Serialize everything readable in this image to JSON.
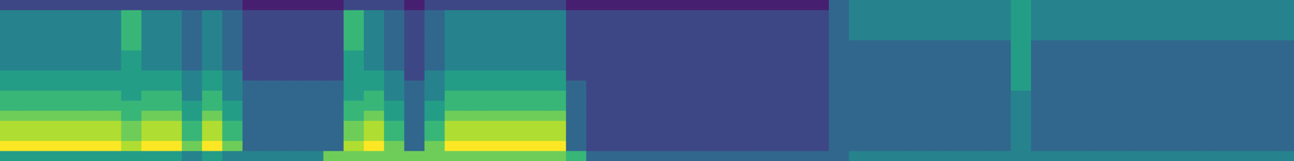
{
  "chart_data": {
    "type": "heatmap",
    "grid": false,
    "tick_labels": false,
    "color_range": [
      0,
      9
    ],
    "cells": [
      [
        2,
        2,
        2,
        2,
        2,
        2,
        2,
        2,
        2,
        2,
        2,
        2,
        1,
        1,
        1,
        1,
        1,
        2,
        2,
        2,
        1,
        2,
        2,
        2,
        2,
        2,
        2,
        2,
        1,
        1,
        1,
        1,
        1,
        1,
        1,
        1,
        1,
        1,
        1,
        1,
        1,
        3,
        4,
        4,
        4,
        4,
        4,
        4,
        4,
        4,
        5,
        4,
        4,
        4,
        4,
        4,
        4,
        4,
        4,
        4,
        4,
        4,
        4,
        4
      ],
      [
        4,
        4,
        4,
        4,
        4,
        4,
        6,
        4,
        4,
        3,
        4,
        3,
        2,
        2,
        2,
        2,
        2,
        6,
        4,
        3,
        2,
        3,
        4,
        4,
        4,
        4,
        4,
        4,
        2,
        2,
        2,
        2,
        2,
        2,
        2,
        2,
        2,
        2,
        2,
        2,
        2,
        3,
        4,
        4,
        4,
        4,
        4,
        4,
        4,
        4,
        5,
        4,
        4,
        4,
        4,
        4,
        4,
        4,
        4,
        4,
        4,
        4,
        4,
        4
      ],
      [
        4,
        4,
        4,
        4,
        4,
        4,
        6,
        4,
        4,
        3,
        4,
        3,
        2,
        2,
        2,
        2,
        2,
        6,
        4,
        3,
        2,
        3,
        4,
        4,
        4,
        4,
        4,
        4,
        2,
        2,
        2,
        2,
        2,
        2,
        2,
        2,
        2,
        2,
        2,
        2,
        2,
        3,
        4,
        4,
        4,
        4,
        4,
        4,
        4,
        4,
        5,
        4,
        4,
        4,
        4,
        4,
        4,
        4,
        4,
        4,
        4,
        4,
        4,
        4
      ],
      [
        4,
        4,
        4,
        4,
        4,
        4,
        6,
        4,
        4,
        3,
        4,
        3,
        2,
        2,
        2,
        2,
        2,
        6,
        4,
        3,
        2,
        3,
        4,
        4,
        4,
        4,
        4,
        4,
        2,
        2,
        2,
        2,
        2,
        2,
        2,
        2,
        2,
        2,
        2,
        2,
        2,
        3,
        4,
        4,
        4,
        4,
        4,
        4,
        4,
        4,
        5,
        4,
        4,
        4,
        4,
        4,
        4,
        4,
        4,
        4,
        4,
        4,
        4,
        4
      ],
      [
        4,
        4,
        4,
        4,
        4,
        4,
        6,
        4,
        4,
        3,
        4,
        3,
        2,
        2,
        2,
        2,
        2,
        6,
        4,
        3,
        2,
        3,
        4,
        4,
        4,
        4,
        4,
        4,
        2,
        2,
        2,
        2,
        2,
        2,
        2,
        2,
        2,
        2,
        2,
        2,
        2,
        3,
        3,
        3,
        3,
        3,
        3,
        3,
        3,
        3,
        5,
        3,
        3,
        3,
        3,
        3,
        3,
        3,
        3,
        3,
        3,
        3,
        3,
        3
      ],
      [
        4,
        4,
        4,
        4,
        4,
        4,
        5,
        4,
        4,
        3,
        4,
        3,
        2,
        2,
        2,
        2,
        2,
        5,
        4,
        3,
        2,
        3,
        4,
        4,
        4,
        4,
        4,
        4,
        2,
        2,
        2,
        2,
        2,
        2,
        2,
        2,
        2,
        2,
        2,
        2,
        2,
        3,
        3,
        3,
        3,
        3,
        3,
        3,
        3,
        3,
        5,
        3,
        3,
        3,
        3,
        3,
        3,
        3,
        3,
        3,
        3,
        3,
        3,
        3
      ],
      [
        4,
        4,
        4,
        4,
        4,
        4,
        5,
        4,
        4,
        3,
        4,
        3,
        2,
        2,
        2,
        2,
        2,
        5,
        4,
        3,
        2,
        3,
        4,
        4,
        4,
        4,
        4,
        4,
        2,
        2,
        2,
        2,
        2,
        2,
        2,
        2,
        2,
        2,
        2,
        2,
        2,
        3,
        3,
        3,
        3,
        3,
        3,
        3,
        3,
        3,
        5,
        3,
        3,
        3,
        3,
        3,
        3,
        3,
        3,
        3,
        3,
        3,
        3,
        3
      ],
      [
        5,
        5,
        5,
        5,
        5,
        5,
        5,
        5,
        5,
        4,
        5,
        4,
        2,
        2,
        2,
        2,
        2,
        5,
        5,
        4,
        2,
        4,
        5,
        5,
        5,
        5,
        5,
        5,
        2,
        2,
        2,
        2,
        2,
        2,
        2,
        2,
        2,
        2,
        2,
        2,
        2,
        3,
        3,
        3,
        3,
        3,
        3,
        3,
        3,
        3,
        5,
        3,
        3,
        3,
        3,
        3,
        3,
        3,
        3,
        3,
        3,
        3,
        3,
        3
      ],
      [
        5,
        5,
        5,
        5,
        5,
        5,
        5,
        5,
        5,
        4,
        5,
        4,
        3,
        3,
        3,
        3,
        3,
        5,
        5,
        4,
        3,
        4,
        5,
        5,
        5,
        5,
        5,
        5,
        3,
        2,
        2,
        2,
        2,
        2,
        2,
        2,
        2,
        2,
        2,
        2,
        2,
        3,
        3,
        3,
        3,
        3,
        3,
        3,
        3,
        3,
        5,
        3,
        3,
        3,
        3,
        3,
        3,
        3,
        3,
        3,
        3,
        3,
        3,
        3
      ],
      [
        6,
        6,
        6,
        6,
        6,
        6,
        5,
        6,
        6,
        4,
        6,
        4,
        3,
        3,
        3,
        3,
        3,
        5,
        6,
        4,
        3,
        4,
        6,
        6,
        6,
        6,
        6,
        6,
        3,
        2,
        2,
        2,
        2,
        2,
        2,
        2,
        2,
        2,
        2,
        2,
        2,
        3,
        3,
        3,
        3,
        3,
        3,
        3,
        3,
        3,
        4,
        3,
        3,
        3,
        3,
        3,
        3,
        3,
        3,
        3,
        3,
        3,
        3,
        3
      ],
      [
        6,
        6,
        6,
        6,
        6,
        6,
        6,
        6,
        6,
        5,
        6,
        5,
        3,
        3,
        3,
        3,
        3,
        6,
        6,
        5,
        3,
        5,
        6,
        6,
        6,
        6,
        6,
        6,
        3,
        2,
        2,
        2,
        2,
        2,
        2,
        2,
        2,
        2,
        2,
        2,
        2,
        3,
        3,
        3,
        3,
        3,
        3,
        3,
        3,
        3,
        4,
        3,
        3,
        3,
        3,
        3,
        3,
        3,
        3,
        3,
        3,
        3,
        3,
        3
      ],
      [
        7,
        7,
        7,
        7,
        7,
        7,
        6,
        7,
        7,
        5,
        7,
        5,
        3,
        3,
        3,
        3,
        3,
        6,
        7,
        5,
        3,
        5,
        7,
        7,
        7,
        7,
        7,
        7,
        3,
        2,
        2,
        2,
        2,
        2,
        2,
        2,
        2,
        2,
        2,
        2,
        2,
        3,
        3,
        3,
        3,
        3,
        3,
        3,
        3,
        3,
        4,
        3,
        3,
        3,
        3,
        3,
        3,
        3,
        3,
        3,
        3,
        3,
        3,
        3
      ],
      [
        8,
        8,
        8,
        8,
        8,
        8,
        7,
        8,
        8,
        6,
        8,
        6,
        3,
        3,
        3,
        3,
        3,
        7,
        8,
        6,
        3,
        6,
        8,
        8,
        8,
        8,
        8,
        8,
        3,
        2,
        2,
        2,
        2,
        2,
        2,
        2,
        2,
        2,
        2,
        2,
        2,
        3,
        3,
        3,
        3,
        3,
        3,
        3,
        3,
        3,
        4,
        3,
        3,
        3,
        3,
        3,
        3,
        3,
        3,
        3,
        3,
        3,
        3,
        3
      ],
      [
        8,
        8,
        8,
        8,
        8,
        8,
        7,
        8,
        8,
        6,
        8,
        6,
        3,
        3,
        3,
        3,
        3,
        7,
        8,
        6,
        3,
        6,
        8,
        8,
        8,
        8,
        8,
        8,
        3,
        2,
        2,
        2,
        2,
        2,
        2,
        2,
        2,
        2,
        2,
        2,
        2,
        3,
        3,
        3,
        3,
        3,
        3,
        3,
        3,
        3,
        4,
        3,
        3,
        3,
        3,
        3,
        3,
        3,
        3,
        3,
        3,
        3,
        3,
        3
      ],
      [
        9,
        9,
        9,
        9,
        9,
        9,
        8,
        9,
        9,
        7,
        9,
        7,
        3,
        3,
        3,
        3,
        3,
        8,
        9,
        7,
        3,
        7,
        9,
        9,
        9,
        9,
        9,
        9,
        3,
        2,
        2,
        2,
        2,
        2,
        2,
        2,
        2,
        2,
        2,
        2,
        2,
        3,
        3,
        3,
        3,
        3,
        3,
        3,
        3,
        3,
        4,
        3,
        3,
        3,
        3,
        3,
        3,
        3,
        3,
        3,
        3,
        3,
        3,
        3
      ],
      [
        5,
        5,
        5,
        5,
        5,
        5,
        5,
        5,
        5,
        4,
        5,
        4,
        4,
        4,
        4,
        4,
        7,
        7,
        7,
        7,
        7,
        7,
        7,
        7,
        7,
        7,
        7,
        7,
        6,
        3,
        3,
        3,
        3,
        3,
        3,
        3,
        3,
        3,
        3,
        3,
        3,
        3,
        4,
        4,
        4,
        4,
        4,
        4,
        4,
        4,
        4,
        4,
        4,
        4,
        4,
        4,
        4,
        4,
        4,
        4,
        4,
        4,
        4,
        4
      ]
    ]
  }
}
